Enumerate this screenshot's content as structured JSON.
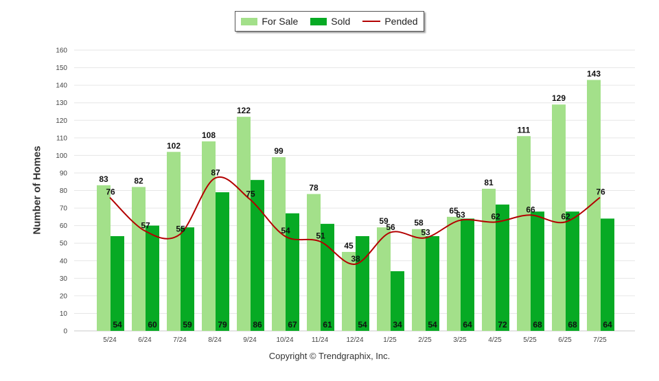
{
  "chart_data": {
    "type": "bar",
    "categories": [
      "5/24",
      "6/24",
      "7/24",
      "8/24",
      "9/24",
      "10/24",
      "11/24",
      "12/24",
      "1/25",
      "2/25",
      "3/25",
      "4/25",
      "5/25",
      "6/25",
      "7/25"
    ],
    "series": [
      {
        "name": "For Sale",
        "kind": "bar",
        "color": "#a3e08a",
        "values": [
          83,
          82,
          102,
          108,
          122,
          99,
          78,
          45,
          59,
          58,
          65,
          81,
          111,
          129,
          143
        ]
      },
      {
        "name": "Sold",
        "kind": "bar",
        "color": "#07aa24",
        "values": [
          54,
          60,
          59,
          79,
          86,
          67,
          61,
          54,
          34,
          54,
          64,
          72,
          68,
          68,
          64
        ]
      },
      {
        "name": "Pended",
        "kind": "line",
        "color": "#b30000",
        "values": [
          76,
          57,
          55,
          87,
          75,
          54,
          51,
          38,
          56,
          53,
          63,
          62,
          66,
          62,
          76
        ]
      }
    ],
    "ylabel": "Number of Homes",
    "ylim": [
      0,
      160
    ],
    "yticks": [
      0,
      10,
      20,
      30,
      40,
      50,
      60,
      70,
      80,
      90,
      100,
      110,
      120,
      130,
      140,
      150,
      160
    ],
    "grid": true,
    "legend_position": "top-center"
  },
  "footer": "Copyright © Trendgraphix, Inc."
}
